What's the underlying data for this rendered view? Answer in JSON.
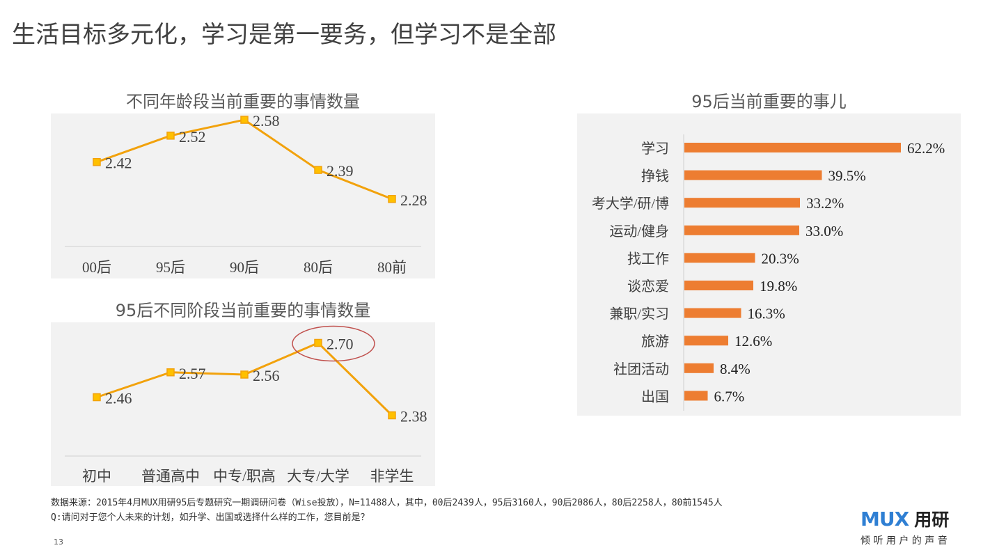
{
  "title": "生活目标多元化，学习是第一要务，但学习不是全部",
  "colors": {
    "line": "#f2a20c",
    "marker": "#ffc000",
    "bar": "#ed7d31",
    "panel": "#f2f2f2",
    "highlight": "#c0504d"
  },
  "chart_data": [
    {
      "type": "line",
      "title": "不同年龄段当前重要的事情数量",
      "categories": [
        "00后",
        "95后",
        "90后",
        "80后",
        "80前"
      ],
      "values": [
        2.42,
        2.52,
        2.58,
        2.39,
        2.28
      ],
      "ylim": [
        2.1,
        2.6
      ],
      "grid": false
    },
    {
      "type": "line",
      "title": "95后不同阶段当前重要的事情数量",
      "categories": [
        "初中",
        "普通高中",
        "中专/职高",
        "大专/大学",
        "非学生"
      ],
      "values": [
        2.46,
        2.57,
        2.56,
        2.7,
        2.38
      ],
      "ylim": [
        2.2,
        2.7
      ],
      "highlight": "大专/大学",
      "grid": false
    },
    {
      "type": "bar",
      "orientation": "horizontal",
      "title": "95后当前重要的事儿",
      "categories": [
        "学习",
        "挣钱",
        "考大学/研/博",
        "运动/健身",
        "找工作",
        "谈恋爱",
        "兼职/实习",
        "旅游",
        "社团活动",
        "出国"
      ],
      "values": [
        62.2,
        39.5,
        33.2,
        33.0,
        20.3,
        19.8,
        16.3,
        12.6,
        8.4,
        6.7
      ],
      "labels": [
        "62.2%",
        "39.5%",
        "33.2%",
        "33.0%",
        "20.3%",
        "19.8%",
        "16.3%",
        "12.6%",
        "8.4%",
        "6.7%"
      ],
      "unit": "%"
    }
  ],
  "footer": {
    "source": "数据来源：2015年4月MUX用研95后专题研究一期调研问卷（Wise投放），N=11488人，其中，00后2439人，95后3160人，90后2086人，80后2258人，80前1545人",
    "question": "Q:请问对于您个人未来的计划，如升学、出国或选择什么样的工作，您目前是？",
    "page": "13"
  },
  "logo": {
    "brand": "MUX",
    "name": "用研",
    "slogan": "倾 听 用 户 的 声 音"
  }
}
